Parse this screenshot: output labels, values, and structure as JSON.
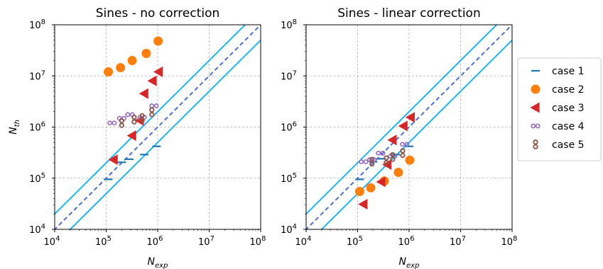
{
  "chart_data": [
    {
      "type": "scatter",
      "title": "Sines - no correction",
      "xlabel": "N",
      "xlabel_sub": "exp",
      "ylabel": "N",
      "ylabel_sub": "th",
      "xscale": "log",
      "yscale": "log",
      "xlim": [
        10000,
        100000000
      ],
      "ylim": [
        10000,
        100000000
      ],
      "grid": true,
      "series": [
        {
          "name": "case 1",
          "marker": "dash",
          "color": "#1f77b4",
          "x": [
            110000,
            200000,
            280000,
            550000,
            950000
          ],
          "y": [
            95000,
            205000,
            235000,
            290000,
            420000
          ]
        },
        {
          "name": "case 2",
          "marker": "circle",
          "color": "#ff7f0e",
          "x": [
            110000,
            190000,
            320000,
            600000,
            1020000
          ],
          "y": [
            12000000,
            14500000,
            20000000,
            27500000,
            48000000
          ]
        },
        {
          "name": "case 3",
          "marker": "triangle-left",
          "color": "#d62728",
          "x": [
            140000,
            320000,
            450000,
            550000,
            800000,
            1050000
          ],
          "y": [
            230000,
            680000,
            1350000,
            4500000,
            8000000,
            12000000
          ]
        },
        {
          "name": "case 4",
          "marker": "ring",
          "color": "#9467bd",
          "x": [
            130000,
            200000,
            290000,
            500000,
            850000
          ],
          "y": [
            1200000,
            1480000,
            1750000,
            1550000,
            2600000
          ]
        },
        {
          "name": "case 5",
          "marker": "eight",
          "color": "#8c564b",
          "x": [
            200000,
            350000,
            500000,
            770000
          ],
          "y": [
            1200000,
            1400000,
            1500000,
            1950000
          ]
        }
      ],
      "reference_lines": [
        {
          "style": "dashed",
          "color": "#4b6fd1",
          "factor": 1
        },
        {
          "style": "solid",
          "color": "#1fb4ee",
          "factor": 2
        },
        {
          "style": "solid",
          "color": "#1fb4ee",
          "factor": 0.5
        }
      ]
    },
    {
      "type": "scatter",
      "title": "Sines - linear correction",
      "xlabel": "N",
      "xlabel_sub": "exp",
      "ylabel": "",
      "ylabel_sub": "",
      "xscale": "log",
      "yscale": "log",
      "xlim": [
        10000,
        100000000
      ],
      "ylim": [
        10000,
        100000000
      ],
      "grid": true,
      "series": [
        {
          "name": "case 1",
          "marker": "dash",
          "color": "#1f77b4",
          "x": [
            110000,
            200000,
            290000,
            550000,
            1000000
          ],
          "y": [
            95000,
            210000,
            240000,
            290000,
            420000
          ]
        },
        {
          "name": "case 2",
          "marker": "circle",
          "color": "#ff7f0e",
          "x": [
            110000,
            180000,
            330000,
            620000,
            1030000
          ],
          "y": [
            55000,
            65000,
            88000,
            130000,
            225000
          ]
        },
        {
          "name": "case 3",
          "marker": "triangle-left",
          "color": "#d62728",
          "x": [
            130000,
            290000,
            380000,
            480000,
            780000,
            1080000
          ],
          "y": [
            31000,
            85000,
            185000,
            560000,
            1050000,
            1550000
          ]
        },
        {
          "name": "case 4",
          "marker": "ring",
          "color": "#9467bd",
          "x": [
            130000,
            190000,
            280000,
            480000,
            820000
          ],
          "y": [
            210000,
            230000,
            310000,
            270000,
            460000
          ]
        },
        {
          "name": "case 5",
          "marker": "eight",
          "color": "#8c564b",
          "x": [
            190000,
            360000,
            480000,
            750000
          ],
          "y": [
            210000,
            225000,
            260000,
            310000
          ]
        }
      ],
      "reference_lines": [
        {
          "style": "dashed",
          "color": "#4b6fd1",
          "factor": 1
        },
        {
          "style": "solid",
          "color": "#1fb4ee",
          "factor": 2
        },
        {
          "style": "solid",
          "color": "#1fb4ee",
          "factor": 0.5
        }
      ]
    }
  ],
  "legend": {
    "placement": "right",
    "entries": [
      "case 1",
      "case 2",
      "case 3",
      "case 4",
      "case 5"
    ]
  },
  "tick_labels": [
    "10",
    "10",
    "10",
    "10",
    "10"
  ],
  "tick_exponents": [
    "4",
    "5",
    "6",
    "7",
    "8"
  ]
}
